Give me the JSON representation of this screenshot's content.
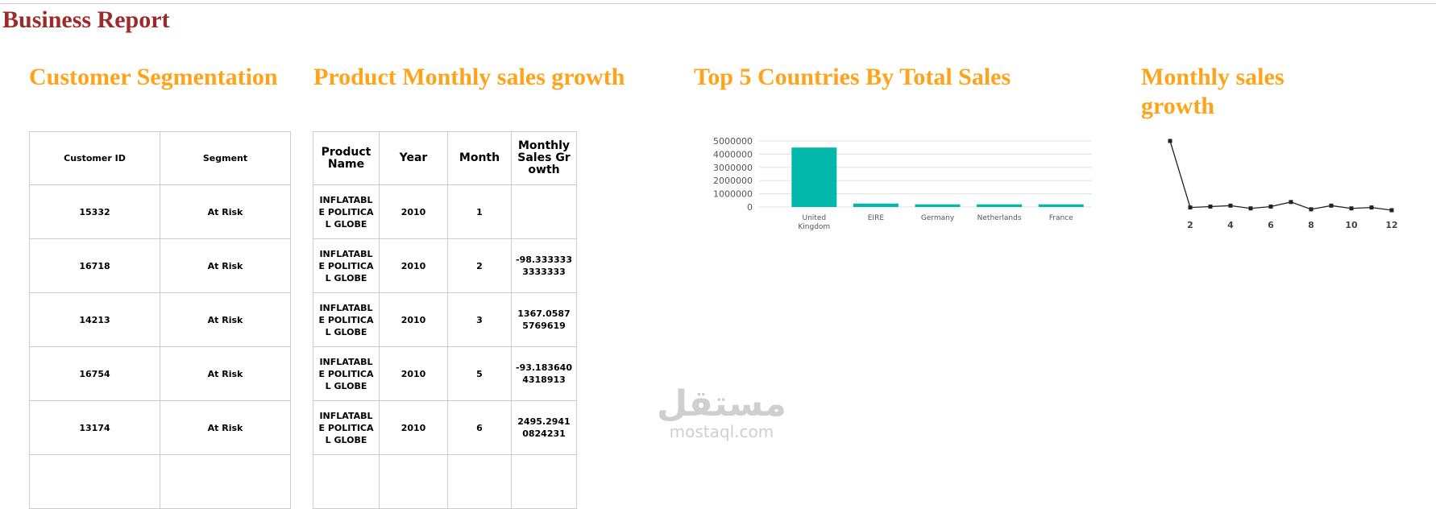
{
  "header": {
    "title": "Business Report"
  },
  "sections": [
    {
      "title": "Customer Segmentation",
      "table": {
        "columns": [
          "Customer ID",
          "Segment"
        ],
        "rows": [
          [
            "15332",
            "At Risk"
          ],
          [
            "16718",
            "At Risk"
          ],
          [
            "14213",
            "At Risk"
          ],
          [
            "16754",
            "At Risk"
          ],
          [
            "13174",
            "At Risk"
          ]
        ]
      }
    },
    {
      "title": "Product Monthly sales growth",
      "table": {
        "columns": [
          "Product Name",
          "Year",
          "Month",
          "Monthly Sales Growth"
        ],
        "rows": [
          [
            "INFLATABLE POLITICAL GLOBE",
            "2010",
            "1",
            null
          ],
          [
            "INFLATABLE POLITICAL GLOBE",
            "2010",
            "2",
            "-98.3333333333333"
          ],
          [
            "INFLATABLE POLITICAL GLOBE",
            "2010",
            "3",
            "1367.05875769619"
          ],
          [
            "INFLATABLE POLITICAL GLOBE",
            "2010",
            "5",
            "-93.1836404318913"
          ],
          [
            "INFLATABLE POLITICAL GLOBE",
            "2010",
            "6",
            "2495.29410824231"
          ]
        ]
      }
    }
  ],
  "chart_data": [
    {
      "type": "bar",
      "title": "Top 5 Countries By Total Sales",
      "categories": [
        "United Kingdom",
        "EIRE",
        "Germany",
        "Netherlands",
        "France"
      ],
      "values": [
        4500000,
        260000,
        200000,
        200000,
        200000
      ],
      "color": "#01b8aa",
      "ylim": [
        0,
        5000000
      ],
      "yticks": [
        0,
        1000000,
        2000000,
        3000000,
        4000000,
        5000000
      ],
      "grid": true
    },
    {
      "type": "line",
      "title": "Monthly sales growth",
      "x": [
        1,
        2,
        3,
        4,
        5,
        6,
        7,
        8,
        9,
        10,
        11,
        12
      ],
      "values": [
        76,
        3,
        4,
        5,
        2,
        4,
        9,
        1,
        5,
        2,
        3,
        0
      ],
      "color": "#222222",
      "xlim": [
        1,
        12
      ],
      "xticks": [
        2,
        4,
        6,
        8,
        10,
        12
      ]
    }
  ],
  "watermark": {
    "arabic": "مستقل",
    "latin": "mostaql.com"
  }
}
